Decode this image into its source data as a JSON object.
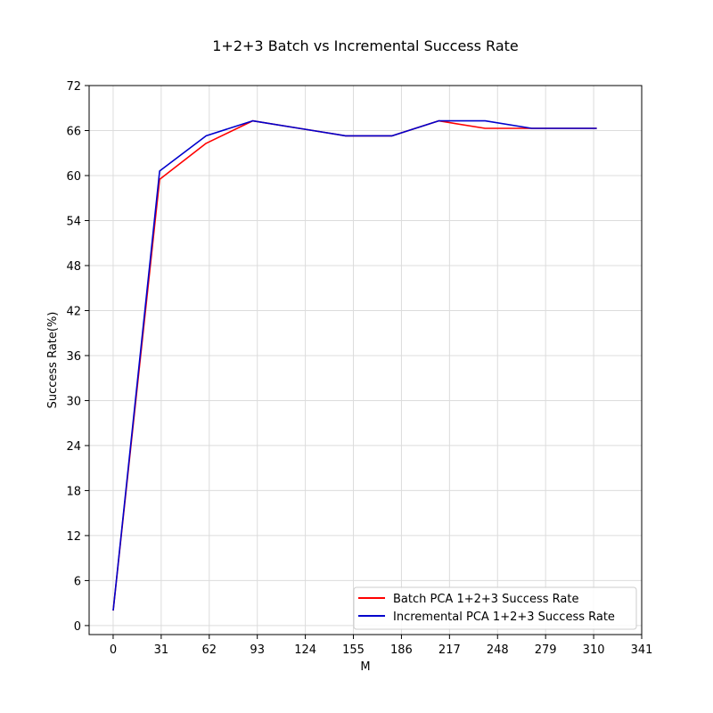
{
  "chart_data": {
    "type": "line",
    "title": "1+2+3 Batch vs Incremental Success Rate",
    "xlabel": "M",
    "ylabel": "Success Rate(%)",
    "xlim": [
      -15.5,
      341
    ],
    "ylim": [
      -1.2,
      72
    ],
    "xticks": [
      0,
      31,
      62,
      93,
      124,
      155,
      186,
      217,
      248,
      279,
      310,
      341
    ],
    "yticks": [
      0,
      6,
      12,
      18,
      24,
      30,
      36,
      42,
      48,
      54,
      60,
      66,
      72
    ],
    "grid": true,
    "legend_position": "lower-right",
    "series": [
      {
        "name": "Batch PCA 1+2+3 Success Rate",
        "color": "#ff0000",
        "x": [
          0,
          30,
          60,
          90,
          120,
          150,
          180,
          210,
          240,
          270,
          300,
          312
        ],
        "y": [
          2,
          59.5,
          64.3,
          67.3,
          66.3,
          65.3,
          65.3,
          67.3,
          66.3,
          66.3,
          66.3,
          66.3
        ]
      },
      {
        "name": "Incremental PCA 1+2+3 Success Rate",
        "color": "#0000cc",
        "x": [
          0,
          30,
          60,
          90,
          120,
          150,
          180,
          210,
          240,
          270,
          300,
          312
        ],
        "y": [
          2,
          60.6,
          65.3,
          67.3,
          66.3,
          65.3,
          65.3,
          67.3,
          67.3,
          66.3,
          66.3,
          66.3
        ]
      }
    ]
  }
}
